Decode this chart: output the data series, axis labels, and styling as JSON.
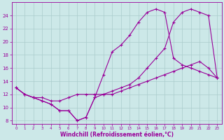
{
  "xlabel": "Windchill (Refroidissement éolien,°C)",
  "background_color": "#cce8e8",
  "line_color": "#990099",
  "grid_color": "#aacccc",
  "xmin": -0.5,
  "xmax": 23.5,
  "ymin": 7.5,
  "ymax": 26,
  "yticks": [
    8,
    10,
    12,
    14,
    16,
    18,
    20,
    22,
    24
  ],
  "xticks": [
    0,
    1,
    2,
    3,
    4,
    5,
    6,
    7,
    8,
    9,
    10,
    11,
    12,
    13,
    14,
    15,
    16,
    17,
    18,
    19,
    20,
    21,
    22,
    23
  ],
  "line1_x": [
    0,
    1,
    2,
    3,
    4,
    5,
    6,
    7,
    8,
    9,
    10,
    11,
    12,
    13,
    14,
    15,
    16,
    17,
    18,
    19,
    20,
    21,
    22,
    23
  ],
  "line1_y": [
    13,
    12,
    11.5,
    11,
    10.5,
    9.5,
    9.5,
    8,
    8.5,
    11.5,
    15,
    18.5,
    19.5,
    21,
    23,
    24.5,
    25,
    24.5,
    17.5,
    16.5,
    16,
    15.5,
    15,
    14.5
  ],
  "line2_x": [
    0,
    1,
    2,
    3,
    4,
    5,
    6,
    7,
    8,
    9,
    10,
    11,
    12,
    13,
    14,
    15,
    16,
    17,
    18,
    19,
    20,
    21,
    22,
    23
  ],
  "line2_y": [
    13,
    12,
    11.5,
    11.5,
    11,
    11,
    11.5,
    12,
    12,
    12,
    12,
    12.5,
    13,
    13.5,
    14.5,
    16,
    17.5,
    19,
    23,
    24.5,
    25,
    24.5,
    24,
    14.5
  ],
  "line3_x": [
    0,
    1,
    2,
    3,
    4,
    5,
    6,
    7,
    8,
    9,
    10,
    11,
    12,
    13,
    14,
    15,
    16,
    17,
    18,
    19,
    20,
    21,
    22,
    23
  ],
  "line3_y": [
    13,
    12,
    11.5,
    11,
    10.5,
    9.5,
    9.5,
    8,
    8.5,
    11.5,
    12,
    12,
    12.5,
    13,
    13.5,
    14,
    14.5,
    15,
    15.5,
    16,
    16.5,
    17,
    16,
    14.5
  ]
}
